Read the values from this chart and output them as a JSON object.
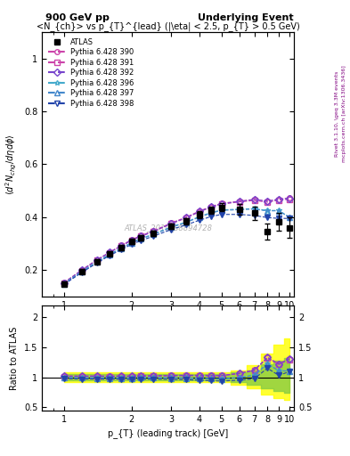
{
  "title_left": "900 GeV pp",
  "title_right": "Underlying Event",
  "subplot_title": "<N_{ch}> vs p_{T}^{lead} (|\\eta| < 2.5, p_{T} > 0.5 GeV)",
  "ylabel_main": "\\langle d^2 N_{chg}/d\\eta d\\phi \\rangle",
  "ylabel_ratio": "Ratio to ATLAS",
  "xlabel": "p_{T} (leading track) [GeV]",
  "watermark": "ATLAS_2010_S8894728",
  "right_label": "Rivet 3.1.10, \\geq 3.3M events",
  "right_label2": "mcplots.cern.ch [arXiv:1306.3436]",
  "atlas_x": [
    1.0,
    1.2,
    1.4,
    1.6,
    1.8,
    2.0,
    2.2,
    2.5,
    3.0,
    3.5,
    4.0,
    4.5,
    5.0,
    6.0,
    7.0,
    8.0,
    9.0,
    10.0
  ],
  "atlas_y": [
    0.148,
    0.195,
    0.232,
    0.262,
    0.285,
    0.307,
    0.32,
    0.337,
    0.365,
    0.385,
    0.408,
    0.425,
    0.437,
    0.43,
    0.415,
    0.345,
    0.382,
    0.36
  ],
  "atlas_yerr": [
    0.008,
    0.008,
    0.009,
    0.009,
    0.009,
    0.01,
    0.01,
    0.01,
    0.011,
    0.012,
    0.013,
    0.014,
    0.015,
    0.02,
    0.025,
    0.03,
    0.035,
    0.04
  ],
  "pythia_x": [
    1.0,
    1.2,
    1.4,
    1.6,
    1.8,
    2.0,
    2.2,
    2.5,
    3.0,
    3.5,
    4.0,
    4.5,
    5.0,
    6.0,
    7.0,
    8.0,
    9.0,
    10.0
  ],
  "p390_y": [
    0.152,
    0.2,
    0.238,
    0.268,
    0.293,
    0.315,
    0.33,
    0.348,
    0.378,
    0.4,
    0.423,
    0.44,
    0.452,
    0.46,
    0.467,
    0.46,
    0.468,
    0.472
  ],
  "p391_y": [
    0.15,
    0.198,
    0.236,
    0.266,
    0.29,
    0.312,
    0.327,
    0.345,
    0.375,
    0.397,
    0.42,
    0.437,
    0.449,
    0.457,
    0.463,
    0.456,
    0.464,
    0.468
  ],
  "p392_y": [
    0.151,
    0.199,
    0.237,
    0.267,
    0.291,
    0.313,
    0.328,
    0.346,
    0.376,
    0.398,
    0.421,
    0.438,
    0.45,
    0.459,
    0.466,
    0.46,
    0.467,
    0.471
  ],
  "p396_y": [
    0.148,
    0.194,
    0.231,
    0.26,
    0.283,
    0.304,
    0.319,
    0.336,
    0.363,
    0.382,
    0.402,
    0.417,
    0.427,
    0.43,
    0.432,
    0.425,
    0.425,
    0.4
  ],
  "p397_y": [
    0.147,
    0.193,
    0.229,
    0.258,
    0.281,
    0.302,
    0.317,
    0.334,
    0.361,
    0.38,
    0.4,
    0.415,
    0.425,
    0.428,
    0.43,
    0.423,
    0.424,
    0.398
  ],
  "p398_y": [
    0.145,
    0.19,
    0.226,
    0.255,
    0.277,
    0.297,
    0.311,
    0.328,
    0.353,
    0.371,
    0.388,
    0.402,
    0.41,
    0.41,
    0.406,
    0.398,
    0.395,
    0.395
  ],
  "colors": {
    "p390": "#cc44aa",
    "p391": "#cc44aa",
    "p392": "#7744cc",
    "p396": "#44aacc",
    "p397": "#4488cc",
    "p398": "#2244aa"
  },
  "markers": {
    "p390": "o",
    "p391": "s",
    "p392": "D",
    "p396": "*",
    "p397": "^",
    "p398": "v"
  },
  "labels": {
    "p390": "Pythia 6.428 390",
    "p391": "Pythia 6.428 391",
    "p392": "Pythia 6.428 392",
    "p396": "Pythia 6.428 396",
    "p397": "Pythia 6.428 397",
    "p398": "Pythia 6.428 398"
  },
  "xlim": [
    0.8,
    10.5
  ],
  "ylim_main": [
    0.1,
    1.1
  ],
  "ylim_ratio": [
    0.45,
    2.2
  ],
  "green_band_ratio": [
    0.9,
    1.1
  ],
  "yellow_band_x": [
    1.0,
    1.2,
    1.4,
    1.6,
    1.8,
    2.0,
    2.2,
    2.5,
    3.0,
    3.5,
    4.0,
    4.5,
    5.0,
    6.0,
    7.0,
    8.0,
    9.0,
    10.0
  ],
  "yellow_band_low": [
    0.92,
    0.92,
    0.92,
    0.92,
    0.92,
    0.92,
    0.92,
    0.92,
    0.92,
    0.92,
    0.92,
    0.92,
    0.92,
    0.88,
    0.82,
    0.72,
    0.65,
    0.62
  ],
  "yellow_band_high": [
    1.08,
    1.08,
    1.08,
    1.08,
    1.08,
    1.08,
    1.08,
    1.08,
    1.08,
    1.08,
    1.08,
    1.08,
    1.08,
    1.12,
    1.2,
    1.4,
    1.55,
    1.65
  ],
  "green_band_low": [
    0.95,
    0.95,
    0.95,
    0.95,
    0.95,
    0.95,
    0.95,
    0.95,
    0.95,
    0.95,
    0.95,
    0.95,
    0.95,
    0.92,
    0.88,
    0.82,
    0.78,
    0.75
  ],
  "green_band_high": [
    1.05,
    1.05,
    1.05,
    1.05,
    1.05,
    1.05,
    1.05,
    1.05,
    1.05,
    1.05,
    1.05,
    1.05,
    1.05,
    1.08,
    1.12,
    1.22,
    1.28,
    1.32
  ]
}
